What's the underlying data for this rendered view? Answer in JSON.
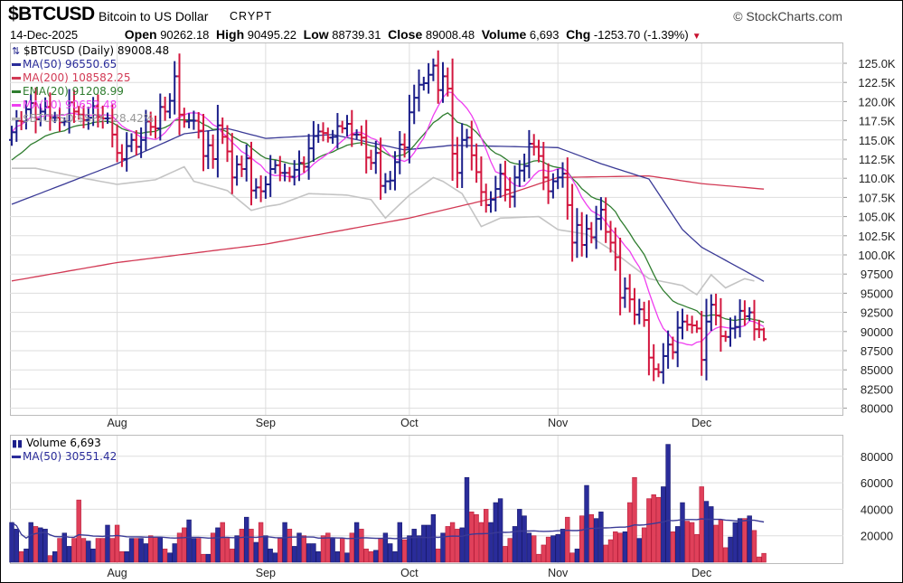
{
  "header": {
    "symbol": "$BTCUSD",
    "name": "Bitcoin to US Dollar",
    "exchange": "CRYPT",
    "date": "14-Dec-2025",
    "open_label": "Open",
    "open": "90262.18",
    "high_label": "High",
    "high": "90495.22",
    "low_label": "Low",
    "low": "88739.31",
    "close_label": "Close",
    "close": "89008.48",
    "volume_label": "Volume",
    "volume": "6,693",
    "chg_label": "Chg",
    "chg": "-1253.70 (-1.39%)",
    "chg_icon": "down-triangle-icon",
    "brand": "© StockCharts.com"
  },
  "legend": {
    "price": "$BTCUSD (Daily) 89008.48",
    "ma50": "MA(50) 96550.65",
    "ma200": "MA(200) 108582.25",
    "ema20": "EMA(20) 91208.99",
    "ma10": "MA(10) 90652.48",
    "relative": "$BTCUSD:$SPX -28.42%",
    "volume": "Volume 6,693",
    "vol_ma50": "MA(50) 30551.42"
  },
  "colors": {
    "up": "#1c1f8a",
    "down": "#d3173f",
    "ma50": "#3a3a96",
    "ma200": "#d23a55",
    "ema20": "#2f7d2f",
    "ma10": "#ef3ef0",
    "relative": "#c4c4c4",
    "vol_up": "#2a2c9a",
    "vol_down": "#e0405a",
    "grid": "#dddddd"
  },
  "chart_data": [
    {
      "type": "ohlc",
      "title": "$BTCUSD (Daily)",
      "start_date": "2025-07-10",
      "x_tick_labels": [
        {
          "label": "Aug",
          "index": 22
        },
        {
          "label": "Sep",
          "index": 53
        },
        {
          "label": "Oct",
          "index": 83
        },
        {
          "label": "Nov",
          "index": 114
        },
        {
          "label": "Dec",
          "index": 144
        }
      ],
      "y_tick_labels": [
        "125.0K",
        "122.5K",
        "120.0K",
        "117.5K",
        "115.0K",
        "112.5K",
        "110.0K",
        "107.5K",
        "105.0K",
        "102.5K",
        "100.0K",
        "97500",
        "95000",
        "92500",
        "90000",
        "87500",
        "85000",
        "82500",
        "80000"
      ],
      "ylim": [
        80000,
        125000
      ],
      "first_open": 115000,
      "last_bar": {
        "open": 90262.18,
        "high": 90495.22,
        "low": 88739.31,
        "close": 89008.48
      },
      "close": [
        116000,
        117500,
        117400,
        119000,
        119800,
        117700,
        118700,
        119300,
        117900,
        117900,
        117300,
        117400,
        119900,
        118700,
        118300,
        117600,
        117900,
        119400,
        118000,
        117800,
        117800,
        115700,
        113300,
        112500,
        114200,
        115000,
        114100,
        115000,
        117400,
        116700,
        116500,
        119300,
        118700,
        120100,
        123300,
        118300,
        117400,
        117500,
        117500,
        116200,
        112900,
        114300,
        112500,
        116900,
        115400,
        113500,
        110100,
        111800,
        111200,
        112600,
        108400,
        108800,
        108300,
        109200,
        111200,
        111700,
        110700,
        110700,
        110200,
        111100,
        112000,
        111500,
        113900,
        115500,
        116100,
        115900,
        115300,
        115400,
        116800,
        116500,
        117100,
        115700,
        115700,
        115300,
        112700,
        112000,
        113300,
        109000,
        109600,
        109700,
        112100,
        114400,
        114000,
        118600,
        120500,
        122200,
        122400,
        123500,
        124700,
        121500,
        123300,
        121700,
        113200,
        110700,
        115000,
        115300,
        113000,
        110800,
        108200,
        106500,
        107200,
        108600,
        110600,
        108500,
        107600,
        110100,
        111000,
        111600,
        114500,
        114100,
        112900,
        110100,
        108300,
        109600,
        110100,
        110600,
        106500,
        101600,
        103900,
        101300,
        103400,
        102300,
        104700,
        105900,
        103000,
        101600,
        99700,
        94400,
        95600,
        94200,
        92200,
        92900,
        91500,
        86600,
        85100,
        84700,
        86800,
        88300,
        87300,
        90500,
        91300,
        90900,
        90800,
        90400,
        86300,
        91300,
        93500,
        92100,
        89400,
        89300,
        90400,
        90600,
        92700,
        92000,
        92500,
        90300,
        90262,
        89008.48
      ],
      "ma50_anchors": [
        [
          0,
          106600
        ],
        [
          22,
          111900
        ],
        [
          36,
          115800
        ],
        [
          45,
          116500
        ],
        [
          53,
          115200
        ],
        [
          67,
          115700
        ],
        [
          82,
          113700
        ],
        [
          92,
          114300
        ],
        [
          114,
          114000
        ],
        [
          123,
          111900
        ],
        [
          133,
          109900
        ],
        [
          140,
          103300
        ],
        [
          144,
          101000
        ],
        [
          157,
          96550.65
        ]
      ],
      "ma200_anchors": [
        [
          0,
          96600
        ],
        [
          22,
          99000
        ],
        [
          53,
          101400
        ],
        [
          83,
          104800
        ],
        [
          102,
          107600
        ],
        [
          114,
          110100
        ],
        [
          133,
          110300
        ],
        [
          144,
          109300
        ],
        [
          157,
          108582.25
        ]
      ],
      "ema20_seed": 112000,
      "relative_anchors": [
        [
          0,
          111300
        ],
        [
          5,
          111300
        ],
        [
          15,
          110000
        ],
        [
          22,
          109200
        ],
        [
          30,
          109800
        ],
        [
          36,
          111500
        ],
        [
          38,
          109600
        ],
        [
          45,
          108400
        ],
        [
          50,
          105800
        ],
        [
          53,
          106300
        ],
        [
          56,
          106600
        ],
        [
          62,
          108000
        ],
        [
          70,
          107800
        ],
        [
          75,
          107200
        ],
        [
          78,
          104800
        ],
        [
          83,
          107800
        ],
        [
          88,
          110100
        ],
        [
          90,
          109600
        ],
        [
          94,
          108000
        ],
        [
          98,
          103700
        ],
        [
          102,
          104800
        ],
        [
          110,
          105000
        ],
        [
          114,
          103300
        ],
        [
          120,
          102700
        ],
        [
          125,
          100700
        ],
        [
          133,
          96900
        ],
        [
          140,
          96000
        ],
        [
          143,
          94800
        ],
        [
          146,
          97400
        ],
        [
          149,
          95700
        ],
        [
          153,
          96900
        ],
        [
          155,
          96600
        ]
      ]
    },
    {
      "type": "bar",
      "title": "Volume",
      "ylim": [
        0,
        95000
      ],
      "y_tick_labels": [
        "80000",
        "60000",
        "40000",
        "20000"
      ],
      "y_tick_values": [
        80000,
        60000,
        40000,
        20000
      ],
      "values": [
        30000,
        25000,
        8000,
        10000,
        30000,
        27000,
        26000,
        25000,
        5000,
        8000,
        18000,
        22000,
        12000,
        18000,
        47000,
        18000,
        16000,
        10000,
        18000,
        18000,
        28000,
        18000,
        28000,
        8000,
        8000,
        18000,
        18000,
        18000,
        14000,
        20000,
        19000,
        19000,
        10000,
        7000,
        14000,
        22000,
        26000,
        32000,
        18000,
        18000,
        6000,
        6000,
        22000,
        26000,
        30000,
        18000,
        10000,
        20000,
        25000,
        34000,
        25000,
        15000,
        30000,
        20000,
        10000,
        7000,
        18000,
        30000,
        25000,
        12000,
        22000,
        20000,
        14000,
        14000,
        8000,
        20000,
        22000,
        18000,
        8000,
        18000,
        7000,
        22000,
        30000,
        25000,
        10000,
        8000,
        9000,
        18000,
        22000,
        14000,
        8000,
        30000,
        17000,
        20000,
        25000,
        20000,
        28000,
        28000,
        36000,
        10000,
        22000,
        27000,
        30000,
        25000,
        26000,
        64000,
        38000,
        36000,
        30000,
        40000,
        30000,
        45000,
        48000,
        12000,
        18000,
        27000,
        40000,
        35000,
        22000,
        20000,
        6000,
        13000,
        19000,
        20000,
        21000,
        25000,
        34000,
        7000,
        10000,
        35000,
        58000,
        36000,
        33000,
        38000,
        13000,
        17000,
        23000,
        22000,
        23000,
        45000,
        64000,
        18000,
        26000,
        48000,
        51000,
        49000,
        57000,
        89000,
        23000,
        27000,
        45000,
        31000,
        30000,
        21000,
        57000,
        46000,
        42000,
        28000,
        32000,
        11000,
        19000,
        30000,
        33000,
        33000,
        35000,
        24000,
        4000,
        6693
      ]
    }
  ]
}
